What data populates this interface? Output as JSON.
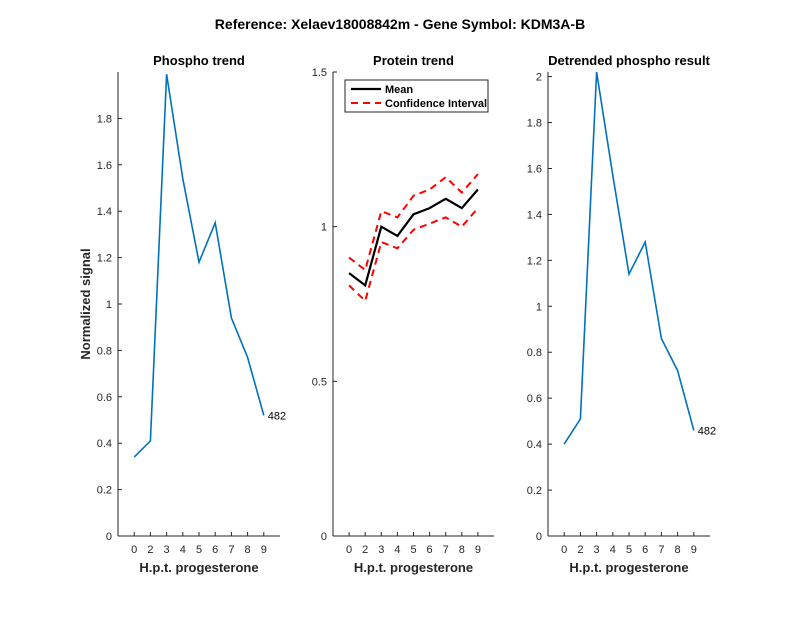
{
  "figure_title": "Reference:  Xelaev18008842m - Gene Symbol:  KDM3A-B",
  "colors": {
    "series": "#0072BD",
    "mean": "#000000",
    "ci": "#FF0000",
    "axis": "#262626"
  },
  "chart_data": [
    {
      "type": "line",
      "title": "Phospho trend",
      "xlabel": "H.p.t. progesterone",
      "ylabel": "Normalized signal",
      "categories": [
        "0",
        "2",
        "3",
        "4",
        "5",
        "6",
        "7",
        "8",
        "9"
      ],
      "ylim": [
        0,
        2
      ],
      "yticks": [
        0,
        0.2,
        0.4,
        0.6,
        0.8,
        1,
        1.2,
        1.4,
        1.6,
        1.8
      ],
      "ytick_labels": [
        "0",
        "0.2",
        "0.4",
        "0.6",
        "0.8",
        "1",
        "1.2",
        "1.4",
        "1.6",
        "1.8"
      ],
      "series": [
        {
          "values": [
            0.34,
            0.41,
            1.99,
            1.54,
            1.18,
            1.35,
            0.94,
            0.77,
            0.52
          ]
        }
      ],
      "annotation": "482",
      "grid": false
    },
    {
      "type": "line",
      "title": "Protein trend",
      "xlabel": "H.p.t. progesterone",
      "categories": [
        "0",
        "2",
        "3",
        "4",
        "5",
        "6",
        "7",
        "8",
        "9"
      ],
      "ylim": [
        0,
        1.5
      ],
      "yticks": [
        0,
        0.5,
        1,
        1.5
      ],
      "ytick_labels": [
        "0",
        "0.5",
        "1",
        "1.5"
      ],
      "series": [
        {
          "name": "Mean",
          "values": [
            0.85,
            0.81,
            1.0,
            0.97,
            1.04,
            1.06,
            1.09,
            1.06,
            1.12
          ]
        },
        {
          "name": "Confidence Interval",
          "values": [
            0.9,
            0.86,
            1.05,
            1.03,
            1.1,
            1.12,
            1.16,
            1.11,
            1.17
          ]
        },
        {
          "values": [
            0.81,
            0.76,
            0.95,
            0.93,
            0.99,
            1.01,
            1.03,
            1.0,
            1.06
          ]
        }
      ],
      "legend": "top-left",
      "grid": false
    },
    {
      "type": "line",
      "title": "Detrended phospho result",
      "xlabel": "H.p.t. progesterone",
      "categories": [
        "0",
        "2",
        "3",
        "4",
        "5",
        "6",
        "7",
        "8",
        "9"
      ],
      "ylim": [
        0,
        2.02
      ],
      "yticks": [
        0,
        0.2,
        0.4,
        0.6,
        0.8,
        1,
        1.2,
        1.4,
        1.6,
        1.8,
        2
      ],
      "ytick_labels": [
        "0",
        "0.2",
        "0.4",
        "0.6",
        "0.8",
        "1",
        "1.2",
        "1.4",
        "1.6",
        "1.8",
        "2"
      ],
      "series": [
        {
          "values": [
            0.4,
            0.51,
            2.02,
            1.57,
            1.14,
            1.28,
            0.86,
            0.72,
            0.46
          ]
        }
      ],
      "annotation": "482",
      "grid": false
    }
  ]
}
